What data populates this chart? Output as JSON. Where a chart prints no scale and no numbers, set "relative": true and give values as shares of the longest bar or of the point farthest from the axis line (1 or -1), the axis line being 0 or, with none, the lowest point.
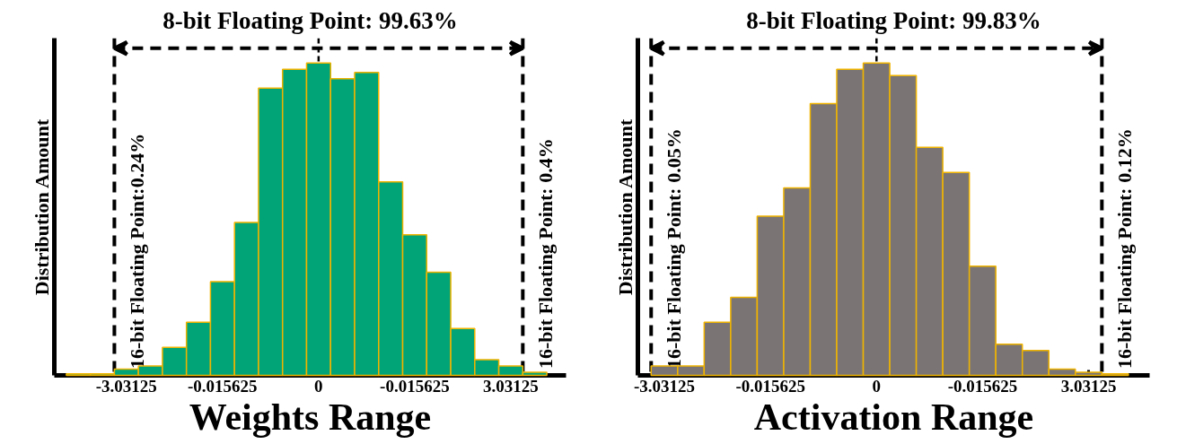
{
  "chart_data": [
    {
      "type": "bar",
      "title": "8-bit Floating Point: 99.63%",
      "xlabel": "Weights Range",
      "ylabel": "Distribution Amount",
      "relative": true,
      "color": "#00a477",
      "categories": [
        null,
        null,
        "-3.03125",
        null,
        null,
        null,
        "-0.015625",
        null,
        null,
        null,
        "0",
        null,
        null,
        null,
        "-0.015625",
        null,
        null,
        null,
        "3.03125",
        null
      ],
      "values": [
        0.005,
        0.005,
        0.02,
        0.03,
        0.09,
        0.17,
        0.3,
        0.49,
        0.92,
        0.98,
        1,
        0.95,
        0.97,
        0.62,
        0.45,
        0.33,
        0.15,
        0.05,
        0.03,
        0.01
      ],
      "annotations": [
        "16-bit Floating Point:0.24%",
        "16-bit Floating Point:  0.4%"
      ],
      "ref_lines": [
        {
          "axis": "x",
          "value": "0",
          "line_style": "dashed"
        }
      ]
    },
    {
      "type": "bar",
      "title": "8-bit Floating Point: 99.83%",
      "xlabel": "Activation Range",
      "ylabel": "Distribution Amount",
      "relative": true,
      "color": "#7a7574",
      "categories": [
        "-3.03125",
        null,
        null,
        null,
        "-0.015625",
        null,
        null,
        null,
        "0",
        null,
        null,
        null,
        "-0.015625",
        null,
        null,
        null,
        "3.03125",
        null
      ],
      "values": [
        0.03,
        0.03,
        0.17,
        0.25,
        0.51,
        0.6,
        0.87,
        0.98,
        1,
        0.96,
        0.73,
        0.65,
        0.35,
        0.1,
        0.08,
        0.02,
        0.01,
        0.005
      ],
      "annotations": [
        "16-bit Floating Point: 0.05%",
        "16-bit Floating Point: 0.12%"
      ],
      "ref_lines": [
        {
          "axis": "x",
          "value": "0",
          "line_style": "dashed"
        }
      ]
    }
  ]
}
